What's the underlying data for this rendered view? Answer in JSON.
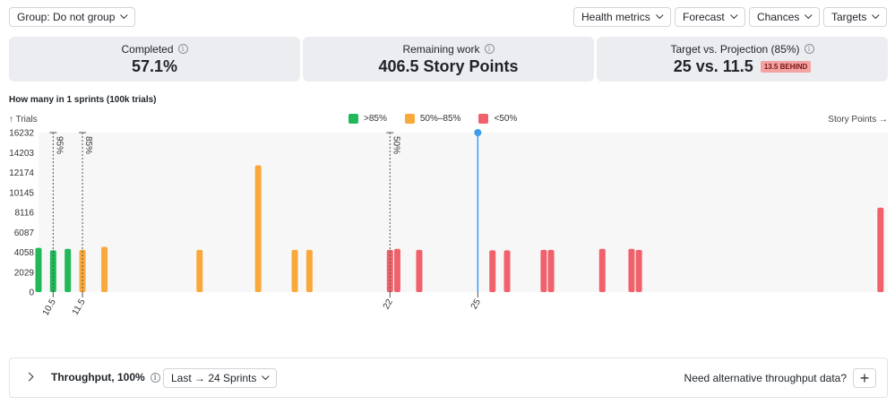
{
  "toolbar": {
    "group_label": "Group: Do not group",
    "health_label": "Health metrics",
    "forecast_label": "Forecast",
    "chances_label": "Chances",
    "targets_label": "Targets"
  },
  "cards": {
    "completed": {
      "label": "Completed",
      "value": "57.1%"
    },
    "remaining": {
      "label": "Remaining work",
      "value": "406.5 Story Points"
    },
    "target": {
      "label": "Target vs. Projection (85%)",
      "value": "25 vs. 11.5",
      "badge": "13.5 BEHIND"
    }
  },
  "chart_section": {
    "title": "How many in 1 sprints (100k trials)",
    "y_axis_label": "↑ Trials",
    "x_axis_label": "Story Points →"
  },
  "legend": [
    {
      "label": ">85%",
      "color": "#21b85a"
    },
    {
      "label": "50%–85%",
      "color": "#f9a93b"
    },
    {
      "label": "<50%",
      "color": "#f0616b"
    }
  ],
  "colors": {
    "green": "#21b85a",
    "orange": "#f9a93b",
    "red": "#f0616b",
    "target": "#3b9cf0",
    "plot_bg": "#f7f7f8"
  },
  "chart_data": {
    "type": "bar",
    "title": "How many in 1 sprints (100k trials)",
    "ylabel": "Trials",
    "xlabel": "Story Points",
    "ylim": [
      0,
      16232
    ],
    "xlim": [
      10,
      39
    ],
    "y_ticks": [
      0,
      2029,
      4058,
      6087,
      8116,
      10145,
      12174,
      14203,
      16232
    ],
    "x_ticks": [
      {
        "value": 10.5,
        "label": "10.5"
      },
      {
        "value": 11.5,
        "label": "11.5"
      },
      {
        "value": 22,
        "label": "22"
      },
      {
        "value": 25,
        "label": "25"
      }
    ],
    "markers": [
      {
        "value": 10.5,
        "label": "95%",
        "style": "dotted"
      },
      {
        "value": 11.5,
        "label": "85%",
        "style": "dotted"
      },
      {
        "value": 22,
        "label": "50%",
        "style": "dotted"
      },
      {
        "value": 25,
        "label": "",
        "style": "target"
      }
    ],
    "series": [
      {
        "name": ">85%",
        "color": "green",
        "x": [
          10,
          10.5,
          11
        ],
        "values": [
          4500,
          4250,
          4400
        ]
      },
      {
        "name": "50%–85%",
        "color": "orange",
        "x": [
          11.5,
          12.25,
          15.5,
          17.5,
          18.75,
          19.25
        ],
        "values": [
          4300,
          4600,
          4300,
          12900,
          4300,
          4300
        ]
      },
      {
        "name": "<50%",
        "color": "red",
        "x": [
          22,
          22.25,
          23,
          25.5,
          26,
          27.25,
          27.5,
          29.25,
          30.25,
          30.5,
          38.75
        ],
        "values": [
          4300,
          4400,
          4300,
          4250,
          4250,
          4300,
          4300,
          4400,
          4400,
          4300,
          8600
        ]
      }
    ]
  },
  "throughput": {
    "title": "Throughput, 100%",
    "range_label": "Last → 24 Sprints",
    "alt_text": "Need alternative throughput data?",
    "plus": "+"
  }
}
